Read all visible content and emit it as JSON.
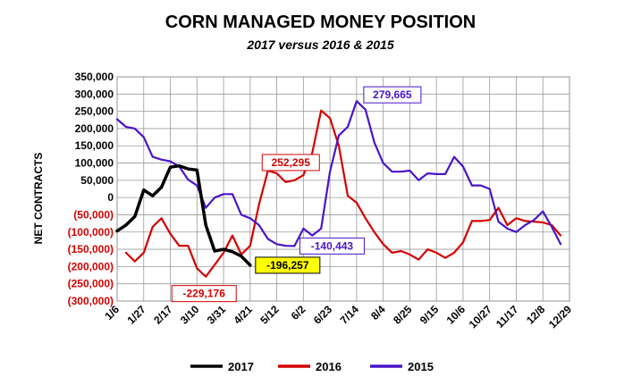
{
  "chart_data": {
    "type": "line",
    "title": "CORN MANAGED MONEY POSITION",
    "subtitle": "2017 versus 2016 & 2015",
    "ylabel": "NET CONTRACTS",
    "xlabel": "",
    "ylim": [
      -300000,
      350000
    ],
    "yticks": [
      {
        "value": 350000,
        "label": "350,000"
      },
      {
        "value": 300000,
        "label": "300,000"
      },
      {
        "value": 250000,
        "label": "250,000"
      },
      {
        "value": 200000,
        "label": "200,000"
      },
      {
        "value": 150000,
        "label": "150,000"
      },
      {
        "value": 100000,
        "label": "100,000"
      },
      {
        "value": 50000,
        "label": "50,000"
      },
      {
        "value": 0,
        "label": "0"
      },
      {
        "value": -50000,
        "label": "(50,000)"
      },
      {
        "value": -100000,
        "label": "(100,000)"
      },
      {
        "value": -150000,
        "label": "(150,000)"
      },
      {
        "value": -200000,
        "label": "(200,000)"
      },
      {
        "value": -250000,
        "label": "(250,000)"
      },
      {
        "value": -300000,
        "label": "(300,000)"
      }
    ],
    "xticks": [
      {
        "week": 0,
        "label": "1/6"
      },
      {
        "week": 3,
        "label": "1/27"
      },
      {
        "week": 6,
        "label": "2/17"
      },
      {
        "week": 9,
        "label": "3/10"
      },
      {
        "week": 12,
        "label": "3/31"
      },
      {
        "week": 15,
        "label": "4/21"
      },
      {
        "week": 18,
        "label": "5/12"
      },
      {
        "week": 21,
        "label": "6/2"
      },
      {
        "week": 24,
        "label": "6/23"
      },
      {
        "week": 27,
        "label": "7/14"
      },
      {
        "week": 30,
        "label": "8/4"
      },
      {
        "week": 33,
        "label": "8/25"
      },
      {
        "week": 36,
        "label": "9/15"
      },
      {
        "week": 39,
        "label": "10/6"
      },
      {
        "week": 42,
        "label": "10/27"
      },
      {
        "week": 45,
        "label": "11/17"
      },
      {
        "week": 48,
        "label": "12/8"
      },
      {
        "week": 51,
        "label": "12/29"
      }
    ],
    "x_range": [
      0,
      51
    ],
    "grid": true,
    "legend_position": "bottom",
    "series": [
      {
        "name": "2017",
        "color": "#000000",
        "start_week": 0,
        "values": [
          -97000,
          -80000,
          -55000,
          22000,
          5000,
          30000,
          88000,
          92000,
          83000,
          80000,
          -80000,
          -155000,
          -150000,
          -157000,
          -170000,
          -196257
        ]
      },
      {
        "name": "2016",
        "color": "#d40000",
        "start_week": 1,
        "values": [
          -160000,
          -185000,
          -160000,
          -85000,
          -60000,
          -105000,
          -140000,
          -140000,
          -205000,
          -229176,
          -195000,
          -160000,
          -110000,
          -165000,
          -140000,
          -20000,
          78000,
          70000,
          45000,
          50000,
          65000,
          130000,
          252295,
          230000,
          150000,
          5000,
          -15000,
          -60000,
          -100000,
          -135000,
          -160000,
          -155000,
          -165000,
          -180000,
          -150000,
          -160000,
          -175000,
          -160000,
          -130000,
          -68000,
          -68000,
          -65000,
          -30000,
          -80000,
          -60000,
          -68000,
          -70000,
          -72000,
          -80000,
          -110000
        ]
      },
      {
        "name": "2015",
        "color": "#4a14c8",
        "start_week": 0,
        "values": [
          227000,
          205000,
          200000,
          175000,
          118000,
          110000,
          105000,
          90000,
          52000,
          35000,
          -30000,
          0,
          10000,
          10000,
          -50000,
          -60000,
          -80000,
          -120000,
          -135000,
          -140000,
          -140443,
          -90000,
          -110000,
          -90000,
          75000,
          180000,
          205000,
          279665,
          255000,
          160000,
          100000,
          75000,
          75000,
          78000,
          50000,
          70000,
          68000,
          68000,
          118000,
          90000,
          35000,
          35000,
          25000,
          -70000,
          -90000,
          -100000,
          -80000,
          -65000,
          -40000,
          -85000,
          -135000
        ]
      }
    ],
    "annotations": [
      {
        "series": "2015",
        "week": 27,
        "text": "279,665",
        "color": "#4a14c8",
        "bg": "#ffffff",
        "anchor": "upper-right"
      },
      {
        "series": "2016",
        "week": 22,
        "text": "252,295",
        "color": "#d40000",
        "bg": "#ffffff",
        "anchor": "upper-left"
      },
      {
        "series": "2015",
        "week": 20,
        "text": "-140,443",
        "color": "#4a14c8",
        "bg": "#ffffff",
        "anchor": "right"
      },
      {
        "series": "2017",
        "week": 15,
        "text": "-196,257",
        "color": "#000000",
        "bg": "#ffff00",
        "anchor": "right"
      },
      {
        "series": "2016",
        "week": 10,
        "text": "-229,176",
        "color": "#d40000",
        "bg": "#ffffff",
        "anchor": "below"
      }
    ]
  }
}
